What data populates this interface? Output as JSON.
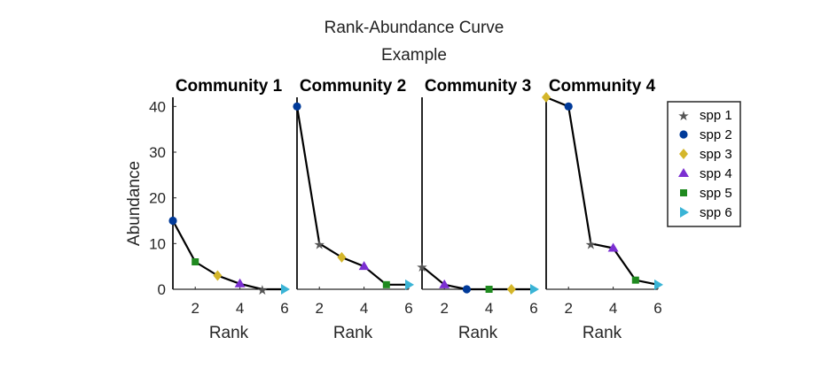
{
  "figure": {
    "title_line1": "Rank-Abundance Curve",
    "title_line2": "Example"
  },
  "chart_data": {
    "type": "line",
    "xlabel": "Rank",
    "ylabel": "Abundance",
    "xlim": [
      1,
      6
    ],
    "ylim": [
      0,
      42
    ],
    "xticks": [
      2,
      4,
      6
    ],
    "yticks": [
      0,
      10,
      20,
      30,
      40
    ],
    "legend_position": "right",
    "species": [
      {
        "name": "spp 1",
        "marker": "star",
        "color": "#555555"
      },
      {
        "name": "spp 2",
        "marker": "circle",
        "color": "#003a99"
      },
      {
        "name": "spp 3",
        "marker": "diamond",
        "color": "#d4b62a"
      },
      {
        "name": "spp 4",
        "marker": "triangle-up",
        "color": "#7b2fd1"
      },
      {
        "name": "spp 5",
        "marker": "square",
        "color": "#1f8a1f"
      },
      {
        "name": "spp 6",
        "marker": "triangle-right",
        "color": "#3ab4d6"
      }
    ],
    "panels": [
      {
        "title": "Community 1",
        "points": [
          {
            "rank": 1,
            "abundance": 15,
            "species": "spp 2"
          },
          {
            "rank": 2,
            "abundance": 6,
            "species": "spp 5"
          },
          {
            "rank": 3,
            "abundance": 3,
            "species": "spp 3"
          },
          {
            "rank": 4,
            "abundance": 1.2,
            "species": "spp 4"
          },
          {
            "rank": 5,
            "abundance": 0,
            "species": "spp 1"
          },
          {
            "rank": 6,
            "abundance": 0,
            "species": "spp 6"
          }
        ]
      },
      {
        "title": "Community 2",
        "points": [
          {
            "rank": 1,
            "abundance": 40,
            "species": "spp 2"
          },
          {
            "rank": 2,
            "abundance": 10,
            "species": "spp 1"
          },
          {
            "rank": 3,
            "abundance": 7,
            "species": "spp 3"
          },
          {
            "rank": 4,
            "abundance": 5,
            "species": "spp 4"
          },
          {
            "rank": 5,
            "abundance": 1,
            "species": "spp 5"
          },
          {
            "rank": 6,
            "abundance": 1,
            "species": "spp 6"
          }
        ]
      },
      {
        "title": "Community 3",
        "points": [
          {
            "rank": 1,
            "abundance": 5,
            "species": "spp 1"
          },
          {
            "rank": 2,
            "abundance": 1,
            "species": "spp 4"
          },
          {
            "rank": 3,
            "abundance": 0,
            "species": "spp 2"
          },
          {
            "rank": 4,
            "abundance": 0,
            "species": "spp 5"
          },
          {
            "rank": 5,
            "abundance": 0,
            "species": "spp 3"
          },
          {
            "rank": 6,
            "abundance": 0,
            "species": "spp 6"
          }
        ]
      },
      {
        "title": "Community 4",
        "points": [
          {
            "rank": 1,
            "abundance": 42,
            "species": "spp 3"
          },
          {
            "rank": 2,
            "abundance": 40,
            "species": "spp 2"
          },
          {
            "rank": 3,
            "abundance": 10,
            "species": "spp 1"
          },
          {
            "rank": 4,
            "abundance": 9,
            "species": "spp 4"
          },
          {
            "rank": 5,
            "abundance": 2,
            "species": "spp 5"
          },
          {
            "rank": 6,
            "abundance": 1,
            "species": "spp 6"
          }
        ]
      }
    ]
  }
}
